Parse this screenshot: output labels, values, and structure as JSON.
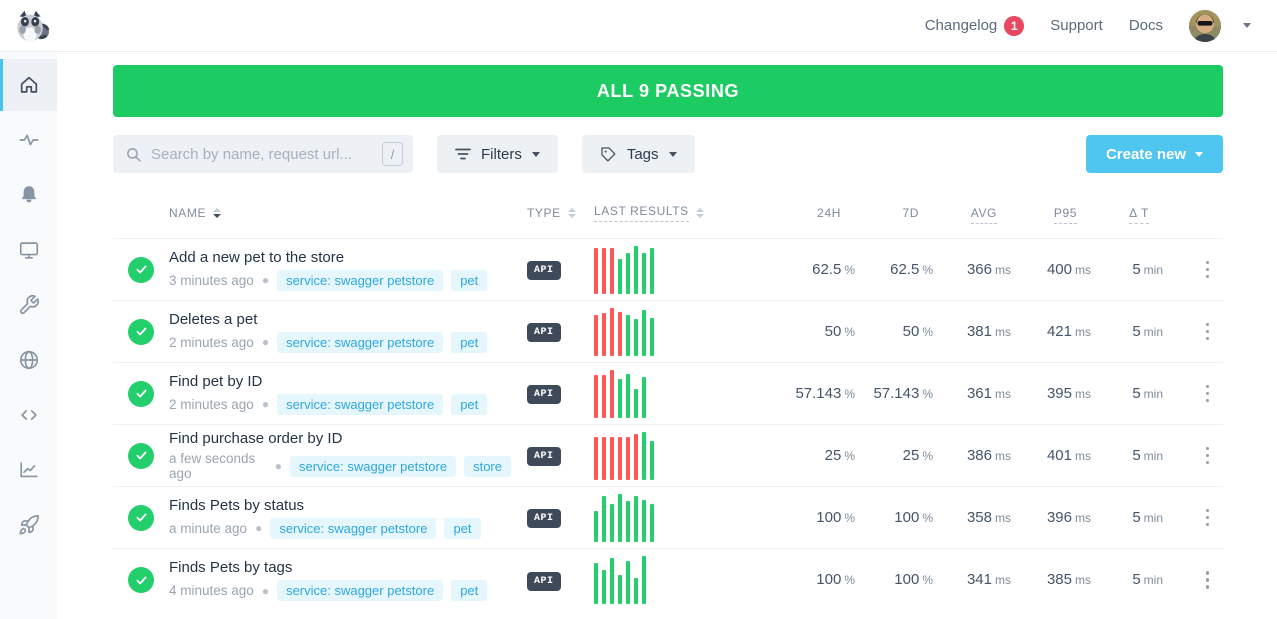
{
  "topbar": {
    "changelog_label": "Changelog",
    "changelog_badge": "1",
    "support_label": "Support",
    "docs_label": "Docs"
  },
  "sidebar": {
    "items": [
      {
        "icon": "home",
        "active": true
      },
      {
        "icon": "activity",
        "active": false
      },
      {
        "icon": "bell",
        "active": false
      },
      {
        "icon": "monitor",
        "active": false
      },
      {
        "icon": "wrench",
        "active": false
      },
      {
        "icon": "globe",
        "active": false
      },
      {
        "icon": "code",
        "active": false
      },
      {
        "icon": "chart",
        "active": false
      },
      {
        "icon": "rocket",
        "active": false
      }
    ]
  },
  "banner": {
    "status_text": "ALL 9 PASSING"
  },
  "controls": {
    "search_placeholder": "Search by name, request url...",
    "search_value": "",
    "search_shortcut": "/",
    "filters_label": "Filters",
    "tags_label": "Tags",
    "create_new_label": "Create new"
  },
  "table": {
    "headers": {
      "name": "NAME",
      "type": "TYPE",
      "results": "LAST RESULTS",
      "h24": "24H",
      "d7": "7D",
      "avg": "AVG",
      "p95": "P95",
      "dt": "Δ T"
    },
    "rows": [
      {
        "status": "passing",
        "name": "Add a new pet to the store",
        "time": "3 minutes ago",
        "tags": [
          "service: swagger petstore",
          "pet"
        ],
        "type": "API",
        "results": [
          {
            "s": "fail",
            "h": 0.95
          },
          {
            "s": "fail",
            "h": 0.95
          },
          {
            "s": "fail",
            "h": 0.95
          },
          {
            "s": "pass",
            "h": 0.72
          },
          {
            "s": "pass",
            "h": 0.85
          },
          {
            "s": "pass",
            "h": 1
          },
          {
            "s": "pass",
            "h": 0.85
          },
          {
            "s": "pass",
            "h": 0.95
          }
        ],
        "h24": {
          "v": "62.5",
          "u": "%"
        },
        "d7": {
          "v": "62.5",
          "u": "%"
        },
        "avg": {
          "v": "366",
          "u": "ms"
        },
        "p95": {
          "v": "400",
          "u": "ms"
        },
        "dt": {
          "v": "5",
          "u": "min"
        }
      },
      {
        "status": "passing",
        "name": "Deletes a pet",
        "time": "2 minutes ago",
        "tags": [
          "service: swagger petstore",
          "pet"
        ],
        "type": "API",
        "results": [
          {
            "s": "fail",
            "h": 0.85
          },
          {
            "s": "fail",
            "h": 0.9
          },
          {
            "s": "fail",
            "h": 1
          },
          {
            "s": "fail",
            "h": 0.92
          },
          {
            "s": "pass",
            "h": 0.85
          },
          {
            "s": "pass",
            "h": 0.78
          },
          {
            "s": "pass",
            "h": 0.95
          },
          {
            "s": "pass",
            "h": 0.8
          }
        ],
        "h24": {
          "v": "50",
          "u": "%"
        },
        "d7": {
          "v": "50",
          "u": "%"
        },
        "avg": {
          "v": "381",
          "u": "ms"
        },
        "p95": {
          "v": "421",
          "u": "ms"
        },
        "dt": {
          "v": "5",
          "u": "min"
        }
      },
      {
        "status": "passing",
        "name": "Find pet by ID",
        "time": "2 minutes ago",
        "tags": [
          "service: swagger petstore",
          "pet"
        ],
        "type": "API",
        "results": [
          {
            "s": "fail",
            "h": 0.9
          },
          {
            "s": "fail",
            "h": 0.9
          },
          {
            "s": "fail",
            "h": 1
          },
          {
            "s": "pass",
            "h": 0.82
          },
          {
            "s": "pass",
            "h": 0.92
          },
          {
            "s": "pass",
            "h": 0.6
          },
          {
            "s": "pass",
            "h": 0.85
          }
        ],
        "h24": {
          "v": "57.143",
          "u": "%"
        },
        "d7": {
          "v": "57.143",
          "u": "%"
        },
        "avg": {
          "v": "361",
          "u": "ms"
        },
        "p95": {
          "v": "395",
          "u": "ms"
        },
        "dt": {
          "v": "5",
          "u": "min"
        }
      },
      {
        "status": "passing",
        "name": "Find purchase order by ID",
        "time": "a few seconds ago",
        "tags": [
          "service: swagger petstore",
          "store"
        ],
        "type": "API",
        "results": [
          {
            "s": "fail",
            "h": 0.9
          },
          {
            "s": "fail",
            "h": 0.9
          },
          {
            "s": "fail",
            "h": 0.9
          },
          {
            "s": "fail",
            "h": 0.9
          },
          {
            "s": "fail",
            "h": 0.9
          },
          {
            "s": "fail",
            "h": 0.95
          },
          {
            "s": "pass",
            "h": 1
          },
          {
            "s": "pass",
            "h": 0.82
          }
        ],
        "h24": {
          "v": "25",
          "u": "%"
        },
        "d7": {
          "v": "25",
          "u": "%"
        },
        "avg": {
          "v": "386",
          "u": "ms"
        },
        "p95": {
          "v": "401",
          "u": "ms"
        },
        "dt": {
          "v": "5",
          "u": "min"
        }
      },
      {
        "status": "passing",
        "name": "Finds Pets by status",
        "time": "a minute ago",
        "tags": [
          "service: swagger petstore",
          "pet"
        ],
        "type": "API",
        "results": [
          {
            "s": "pass",
            "h": 0.65
          },
          {
            "s": "pass",
            "h": 0.95
          },
          {
            "s": "pass",
            "h": 0.8
          },
          {
            "s": "pass",
            "h": 1
          },
          {
            "s": "pass",
            "h": 0.85
          },
          {
            "s": "pass",
            "h": 0.95
          },
          {
            "s": "pass",
            "h": 0.88
          },
          {
            "s": "pass",
            "h": 0.8
          }
        ],
        "h24": {
          "v": "100",
          "u": "%"
        },
        "d7": {
          "v": "100",
          "u": "%"
        },
        "avg": {
          "v": "358",
          "u": "ms"
        },
        "p95": {
          "v": "396",
          "u": "ms"
        },
        "dt": {
          "v": "5",
          "u": "min"
        }
      },
      {
        "status": "passing",
        "name": "Finds Pets by tags",
        "time": "4 minutes ago",
        "tags": [
          "service: swagger petstore",
          "pet"
        ],
        "type": "API",
        "results": [
          {
            "s": "pass",
            "h": 0.85
          },
          {
            "s": "pass",
            "h": 0.7
          },
          {
            "s": "pass",
            "h": 0.95
          },
          {
            "s": "pass",
            "h": 0.6
          },
          {
            "s": "pass",
            "h": 0.9
          },
          {
            "s": "pass",
            "h": 0.55
          },
          {
            "s": "pass",
            "h": 1
          }
        ],
        "h24": {
          "v": "100",
          "u": "%"
        },
        "d7": {
          "v": "100",
          "u": "%"
        },
        "avg": {
          "v": "341",
          "u": "ms"
        },
        "p95": {
          "v": "385",
          "u": "ms"
        },
        "dt": {
          "v": "5",
          "u": "min"
        }
      }
    ]
  },
  "colors": {
    "banner_green": "#1dcb63",
    "bar_pass": "#23ce6d",
    "bar_fail": "#fb5959",
    "accent_blue": "#4ec6f0",
    "tag_blue": "#2da8de",
    "badge_red": "#e8485f",
    "sidebar_active": "#45c5ee"
  }
}
